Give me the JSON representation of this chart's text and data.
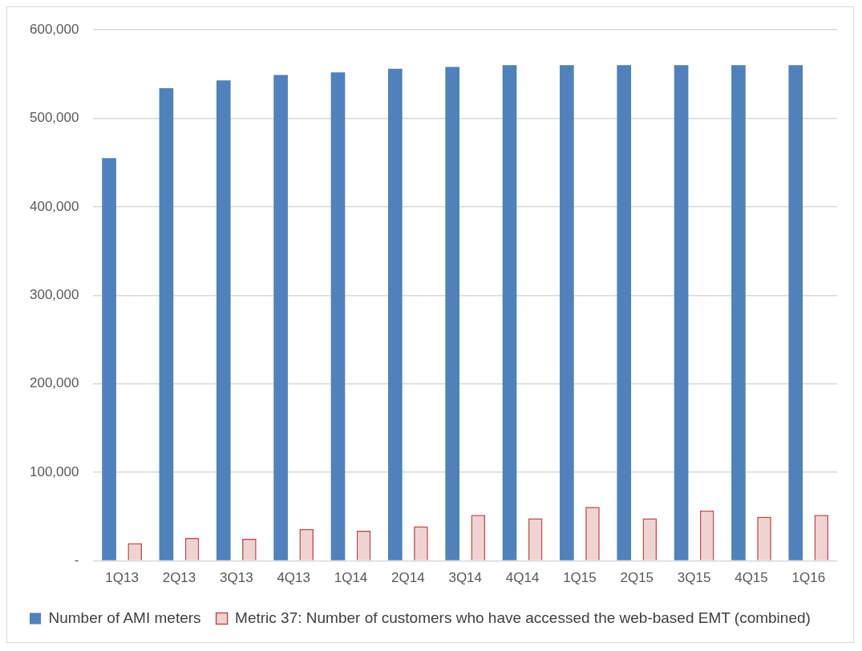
{
  "chart_data": {
    "type": "bar",
    "categories": [
      "1Q13",
      "2Q13",
      "3Q13",
      "4Q13",
      "1Q14",
      "2Q14",
      "3Q14",
      "4Q14",
      "1Q15",
      "2Q15",
      "3Q15",
      "4Q15",
      "1Q16"
    ],
    "series": [
      {
        "name": "Number of AMI meters",
        "color": "#4f81bd",
        "values": [
          455000,
          534000,
          543000,
          549000,
          552000,
          556000,
          558000,
          560000,
          560000,
          560000,
          560000,
          560000,
          560000
        ]
      },
      {
        "name": "Metric 37: Number of customers who have accessed the web-based EMT (combined)",
        "color": "#c0504d",
        "values": [
          20000,
          26000,
          25000,
          36000,
          34000,
          39000,
          52000,
          48000,
          61000,
          48000,
          57000,
          50000,
          52000
        ]
      }
    ],
    "ylim": [
      0,
      600000
    ],
    "yticks": [
      {
        "value": 0,
        "label": "-"
      },
      {
        "value": 100000,
        "label": "100,000"
      },
      {
        "value": 200000,
        "label": "200,000"
      },
      {
        "value": 300000,
        "label": "300,000"
      },
      {
        "value": 400000,
        "label": "400,000"
      },
      {
        "value": 500000,
        "label": "500,000"
      },
      {
        "value": 600000,
        "label": "600,000"
      }
    ],
    "grid": "y",
    "legend": "bottom"
  }
}
